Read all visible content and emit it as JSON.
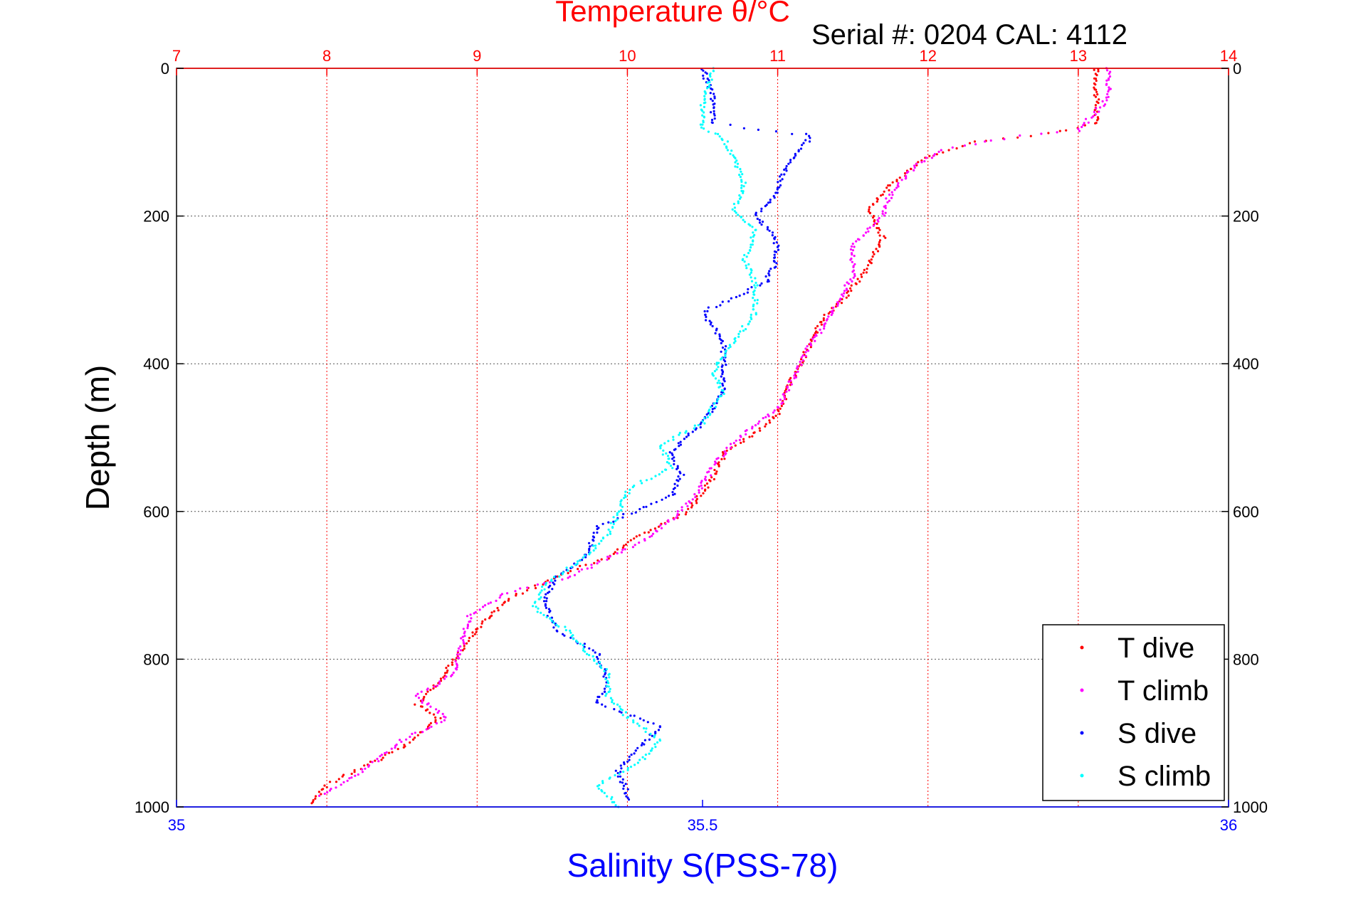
{
  "chart_data": {
    "type": "scatter",
    "title": "Temperature θ/°C",
    "annotation": "Serial #: 0204  CAL: 4112",
    "ylabel": "Depth (m)",
    "xlabel_bottom": "Salinity S(PSS-78)",
    "xlabel_top": "Temperature θ/°C",
    "ylim": [
      0,
      1000
    ],
    "y_reversed": true,
    "y_ticks": [
      "0",
      "200",
      "400",
      "600",
      "800",
      "1000"
    ],
    "x_top_lim": [
      7,
      14
    ],
    "x_top_ticks": [
      "7",
      "8",
      "9",
      "10",
      "11",
      "12",
      "13",
      "14"
    ],
    "x_bottom_lim": [
      35,
      36
    ],
    "x_bottom_ticks": [
      "35",
      "35.5",
      "36"
    ],
    "grid": true,
    "legend_position": "bottom-right",
    "colors": {
      "temperature_axis": "#ff0000",
      "salinity_axis": "#0000ff"
    },
    "series": [
      {
        "name": "T dive",
        "axis": "top",
        "color": "#ff0000",
        "points": [
          [
            13.12,
            0
          ],
          [
            13.12,
            40
          ],
          [
            13.12,
            75
          ],
          [
            12.8,
            88
          ],
          [
            12.3,
            100
          ],
          [
            12.0,
            120
          ],
          [
            11.8,
            150
          ],
          [
            11.7,
            170
          ],
          [
            11.6,
            190
          ],
          [
            11.7,
            230
          ],
          [
            11.6,
            270
          ],
          [
            11.45,
            310
          ],
          [
            11.3,
            340
          ],
          [
            11.2,
            380
          ],
          [
            11.1,
            420
          ],
          [
            11.0,
            470
          ],
          [
            10.8,
            500
          ],
          [
            10.65,
            520
          ],
          [
            10.55,
            560
          ],
          [
            10.4,
            600
          ],
          [
            10.1,
            630
          ],
          [
            9.9,
            660
          ],
          [
            9.5,
            690
          ],
          [
            9.2,
            720
          ],
          [
            9.0,
            760
          ],
          [
            8.85,
            800
          ],
          [
            8.75,
            830
          ],
          [
            8.6,
            860
          ],
          [
            8.75,
            880
          ],
          [
            8.5,
            920
          ],
          [
            8.2,
            950
          ],
          [
            8.0,
            970
          ],
          [
            7.9,
            995
          ]
        ]
      },
      {
        "name": "T climb",
        "axis": "top",
        "color": "#ff00ff",
        "points": [
          [
            13.2,
            0
          ],
          [
            13.2,
            40
          ],
          [
            13.0,
            85
          ],
          [
            12.5,
            95
          ],
          [
            12.1,
            110
          ],
          [
            11.9,
            135
          ],
          [
            11.75,
            170
          ],
          [
            11.7,
            200
          ],
          [
            11.5,
            240
          ],
          [
            11.5,
            280
          ],
          [
            11.4,
            320
          ],
          [
            11.3,
            350
          ],
          [
            11.2,
            380
          ],
          [
            11.1,
            420
          ],
          [
            11.0,
            460
          ],
          [
            10.8,
            490
          ],
          [
            10.6,
            530
          ],
          [
            10.45,
            580
          ],
          [
            10.3,
            610
          ],
          [
            10.1,
            640
          ],
          [
            9.8,
            670
          ],
          [
            9.6,
            690
          ],
          [
            9.2,
            710
          ],
          [
            8.95,
            740
          ],
          [
            8.9,
            780
          ],
          [
            8.85,
            820
          ],
          [
            8.6,
            850
          ],
          [
            8.8,
            880
          ],
          [
            8.5,
            910
          ],
          [
            8.25,
            950
          ],
          [
            7.95,
            985
          ]
        ]
      },
      {
        "name": "S dive",
        "axis": "bottom",
        "color": "#0000ff",
        "points": [
          [
            35.5,
            0
          ],
          [
            35.51,
            40
          ],
          [
            35.51,
            75
          ],
          [
            35.6,
            90
          ],
          [
            35.6,
            100
          ],
          [
            35.58,
            130
          ],
          [
            35.57,
            170
          ],
          [
            35.55,
            200
          ],
          [
            35.57,
            230
          ],
          [
            35.57,
            260
          ],
          [
            35.56,
            290
          ],
          [
            35.5,
            330
          ],
          [
            35.52,
            370
          ],
          [
            35.52,
            410
          ],
          [
            35.52,
            440
          ],
          [
            35.5,
            480
          ],
          [
            35.47,
            520
          ],
          [
            35.48,
            550
          ],
          [
            35.47,
            580
          ],
          [
            35.4,
            620
          ],
          [
            35.39,
            660
          ],
          [
            35.36,
            690
          ],
          [
            35.35,
            720
          ],
          [
            35.36,
            760
          ],
          [
            35.4,
            790
          ],
          [
            35.41,
            830
          ],
          [
            35.4,
            860
          ],
          [
            35.46,
            890
          ],
          [
            35.44,
            920
          ],
          [
            35.42,
            950
          ],
          [
            35.43,
            990
          ]
        ]
      },
      {
        "name": "S climb",
        "axis": "bottom",
        "color": "#00ffff",
        "points": [
          [
            35.51,
            0
          ],
          [
            35.5,
            50
          ],
          [
            35.5,
            80
          ],
          [
            35.52,
            95
          ],
          [
            35.53,
            120
          ],
          [
            35.54,
            160
          ],
          [
            35.53,
            190
          ],
          [
            35.55,
            220
          ],
          [
            35.54,
            260
          ],
          [
            35.55,
            290
          ],
          [
            35.55,
            330
          ],
          [
            35.53,
            370
          ],
          [
            35.51,
            410
          ],
          [
            35.52,
            440
          ],
          [
            35.5,
            480
          ],
          [
            35.46,
            510
          ],
          [
            35.47,
            540
          ],
          [
            35.43,
            570
          ],
          [
            35.42,
            600
          ],
          [
            35.41,
            630
          ],
          [
            35.39,
            660
          ],
          [
            35.35,
            700
          ],
          [
            35.34,
            730
          ],
          [
            35.37,
            760
          ],
          [
            35.39,
            790
          ],
          [
            35.41,
            820
          ],
          [
            35.41,
            850
          ],
          [
            35.43,
            880
          ],
          [
            35.46,
            910
          ],
          [
            35.44,
            940
          ],
          [
            35.4,
            970
          ],
          [
            35.42,
            1000
          ]
        ]
      }
    ]
  }
}
